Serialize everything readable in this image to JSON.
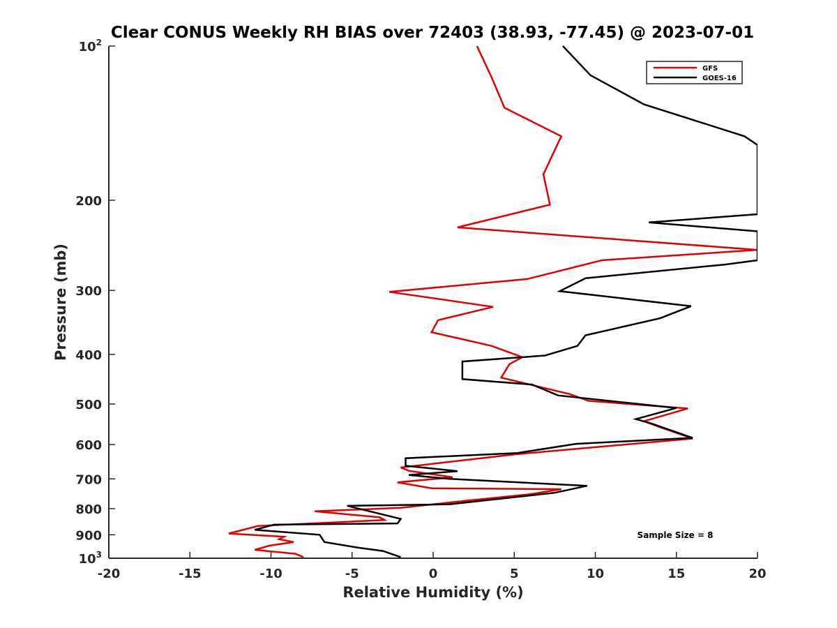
{
  "chart_data": {
    "type": "line",
    "title": "Clear CONUS Weekly RH BIAS over 72403 (38.93, -77.45) @ 2023-07-01",
    "xlabel": "Relative Humidity (%)",
    "ylabel": "Pressure (mb)",
    "xlim": [
      -20,
      20
    ],
    "ylim": [
      100,
      1000
    ],
    "y_scale": "log",
    "y_reversed": true,
    "xticks": [
      -20,
      -15,
      -10,
      -5,
      0,
      5,
      10,
      15,
      20
    ],
    "xtick_labels": [
      "-20",
      "-15",
      "-10",
      "-5",
      "0",
      "5",
      "10",
      "15",
      "20"
    ],
    "yticks": [
      {
        "value": 100,
        "base": "10",
        "exp": "2"
      },
      {
        "value": 200,
        "label": "200"
      },
      {
        "value": 300,
        "label": "300"
      },
      {
        "value": 400,
        "label": "400"
      },
      {
        "value": 500,
        "label": "500"
      },
      {
        "value": 600,
        "label": "600"
      },
      {
        "value": 700,
        "label": "700"
      },
      {
        "value": 800,
        "label": "800"
      },
      {
        "value": 900,
        "label": "900"
      },
      {
        "value": 1000,
        "base": "10",
        "exp": "3"
      }
    ],
    "grid": false,
    "legend_position": "top-right",
    "annotation": "Sample Size = 8",
    "series": [
      {
        "name": "GFS",
        "color": "#e00000",
        "points": [
          [
            2.7,
            100
          ],
          [
            3.6,
            115
          ],
          [
            4.4,
            132
          ],
          [
            7.9,
            150
          ],
          [
            6.8,
            178
          ],
          [
            7.2,
            204
          ],
          [
            1.5,
            226
          ],
          [
            20.0,
            250
          ],
          [
            10.4,
            262
          ],
          [
            5.8,
            285
          ],
          [
            -2.7,
            302
          ],
          [
            3.7,
            323
          ],
          [
            0.3,
            343
          ],
          [
            -0.1,
            362
          ],
          [
            3.6,
            385
          ],
          [
            5.5,
            405
          ],
          [
            4.7,
            418
          ],
          [
            4.2,
            444
          ],
          [
            8.4,
            478
          ],
          [
            9.6,
            493
          ],
          [
            15.7,
            510
          ],
          [
            13.0,
            540
          ],
          [
            14.0,
            555
          ],
          [
            16.0,
            584
          ],
          [
            10.0,
            607
          ],
          [
            5.0,
            627
          ],
          [
            -2.0,
            665
          ],
          [
            -1.5,
            675
          ],
          [
            1.2,
            695
          ],
          [
            -2.2,
            711
          ],
          [
            -0.1,
            730
          ],
          [
            7.9,
            733
          ],
          [
            6.0,
            750
          ],
          [
            2.4,
            770
          ],
          [
            -2.0,
            797
          ],
          [
            -7.3,
            810
          ],
          [
            -3.3,
            832
          ],
          [
            -3.0,
            842
          ],
          [
            -10.8,
            865
          ],
          [
            -12.6,
            895
          ],
          [
            -9.2,
            908
          ],
          [
            -9.5,
            918
          ],
          [
            -8.6,
            930
          ],
          [
            -10.1,
            945
          ],
          [
            -11.0,
            963
          ],
          [
            -8.5,
            980
          ],
          [
            -8.0,
            995
          ]
        ]
      },
      {
        "name": "GOES-16",
        "color": "#000000",
        "points": [
          [
            8.0,
            100
          ],
          [
            9.7,
            114
          ],
          [
            13.0,
            130
          ],
          [
            19.2,
            150
          ],
          [
            20.0,
            156
          ],
          [
            20.0,
            213
          ],
          [
            13.3,
            221
          ],
          [
            20.0,
            230
          ],
          [
            20.0,
            262
          ],
          [
            18.0,
            267
          ],
          [
            9.4,
            284
          ],
          [
            7.8,
            301
          ],
          [
            15.9,
            322
          ],
          [
            14.0,
            340
          ],
          [
            9.4,
            367
          ],
          [
            8.9,
            385
          ],
          [
            6.9,
            402
          ],
          [
            1.8,
            413
          ],
          [
            1.8,
            447
          ],
          [
            6.1,
            458
          ],
          [
            7.7,
            481
          ],
          [
            15.0,
            509
          ],
          [
            12.5,
            535
          ],
          [
            13.4,
            545
          ],
          [
            16.0,
            582
          ],
          [
            8.8,
            598
          ],
          [
            5.2,
            623
          ],
          [
            -1.7,
            638
          ],
          [
            -1.7,
            660
          ],
          [
            1.5,
            676
          ],
          [
            -1.5,
            688
          ],
          [
            1.0,
            700
          ],
          [
            9.5,
            722
          ],
          [
            7.5,
            745
          ],
          [
            1.0,
            785
          ],
          [
            -5.3,
            790
          ],
          [
            -2.0,
            838
          ],
          [
            -2.2,
            855
          ],
          [
            -9.8,
            860
          ],
          [
            -11.0,
            880
          ],
          [
            -7.0,
            900
          ],
          [
            -6.7,
            930
          ],
          [
            -4.5,
            955
          ],
          [
            -3.1,
            968
          ],
          [
            -2.0,
            995
          ]
        ]
      }
    ]
  }
}
